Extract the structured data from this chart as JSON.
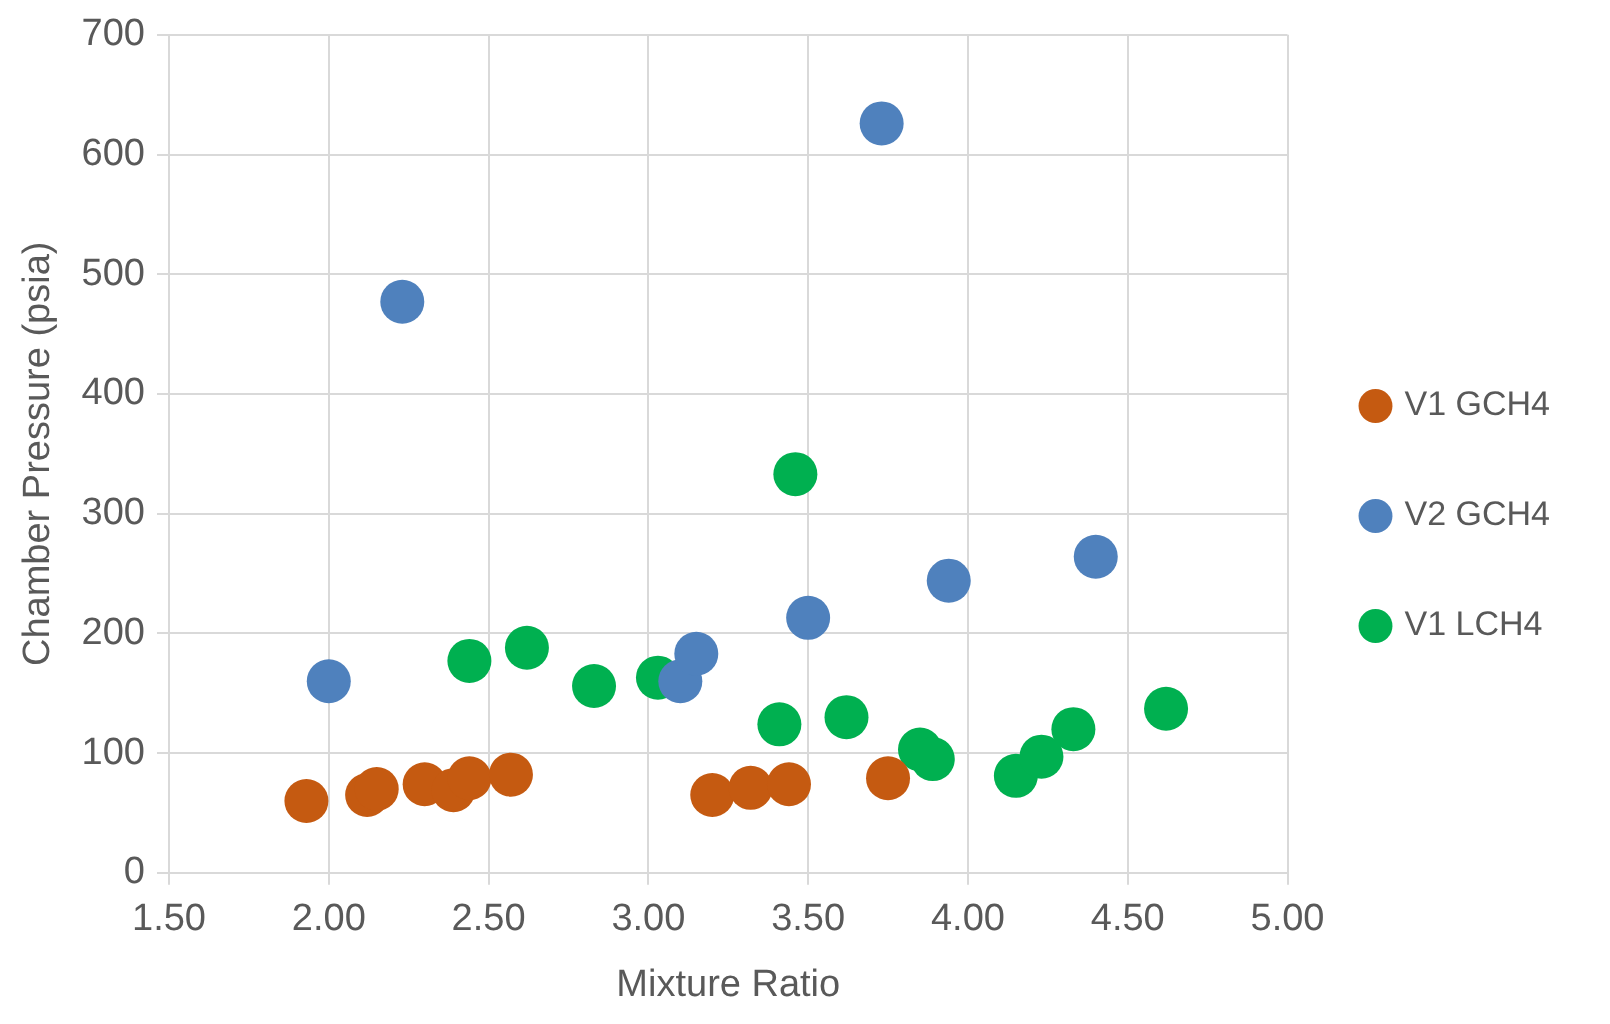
{
  "chart_data": {
    "type": "scatter",
    "xlabel": "Mixture Ratio",
    "ylabel": "Chamber Pressure (psia)",
    "xlim": [
      1.5,
      5
    ],
    "ylim": [
      0,
      700
    ],
    "xticks": [
      {
        "value": 1.5,
        "label": "1.50"
      },
      {
        "value": 2,
        "label": "2.00"
      },
      {
        "value": 2.5,
        "label": "2.50"
      },
      {
        "value": 3,
        "label": "3.00"
      },
      {
        "value": 3.5,
        "label": "3.50"
      },
      {
        "value": 4,
        "label": "4.00"
      },
      {
        "value": 4.5,
        "label": "4.50"
      },
      {
        "value": 5,
        "label": "5.00"
      }
    ],
    "yticks": [
      0,
      100,
      200,
      300,
      400,
      500,
      600,
      700
    ],
    "grid": true,
    "legend": "right",
    "marker": "circle",
    "series": [
      {
        "name": "V1 GCH4",
        "color": "#c55a11",
        "x": [
          1.93,
          2.12,
          2.15,
          2.3,
          2.39,
          2.44,
          2.57,
          3.2,
          3.32,
          3.44,
          3.75
        ],
        "values": [
          60,
          65,
          70,
          74,
          69,
          79,
          82,
          65,
          71,
          74,
          79
        ]
      },
      {
        "name": "V2 GCH4",
        "color": "#4f81bd",
        "x": [
          2.0,
          2.23,
          3.1,
          3.15,
          3.5,
          3.73,
          3.94,
          4.4
        ],
        "values": [
          160,
          477,
          160,
          183,
          213,
          626,
          244,
          264
        ]
      },
      {
        "name": "V1 LCH4",
        "color": "#00b050",
        "x": [
          2.44,
          2.62,
          2.83,
          3.03,
          3.41,
          3.46,
          3.62,
          3.85,
          3.89,
          4.15,
          4.23,
          4.33,
          4.62
        ],
        "values": [
          177,
          188,
          156,
          163,
          124,
          333,
          130,
          103,
          95,
          81,
          97,
          120,
          137
        ]
      }
    ]
  }
}
